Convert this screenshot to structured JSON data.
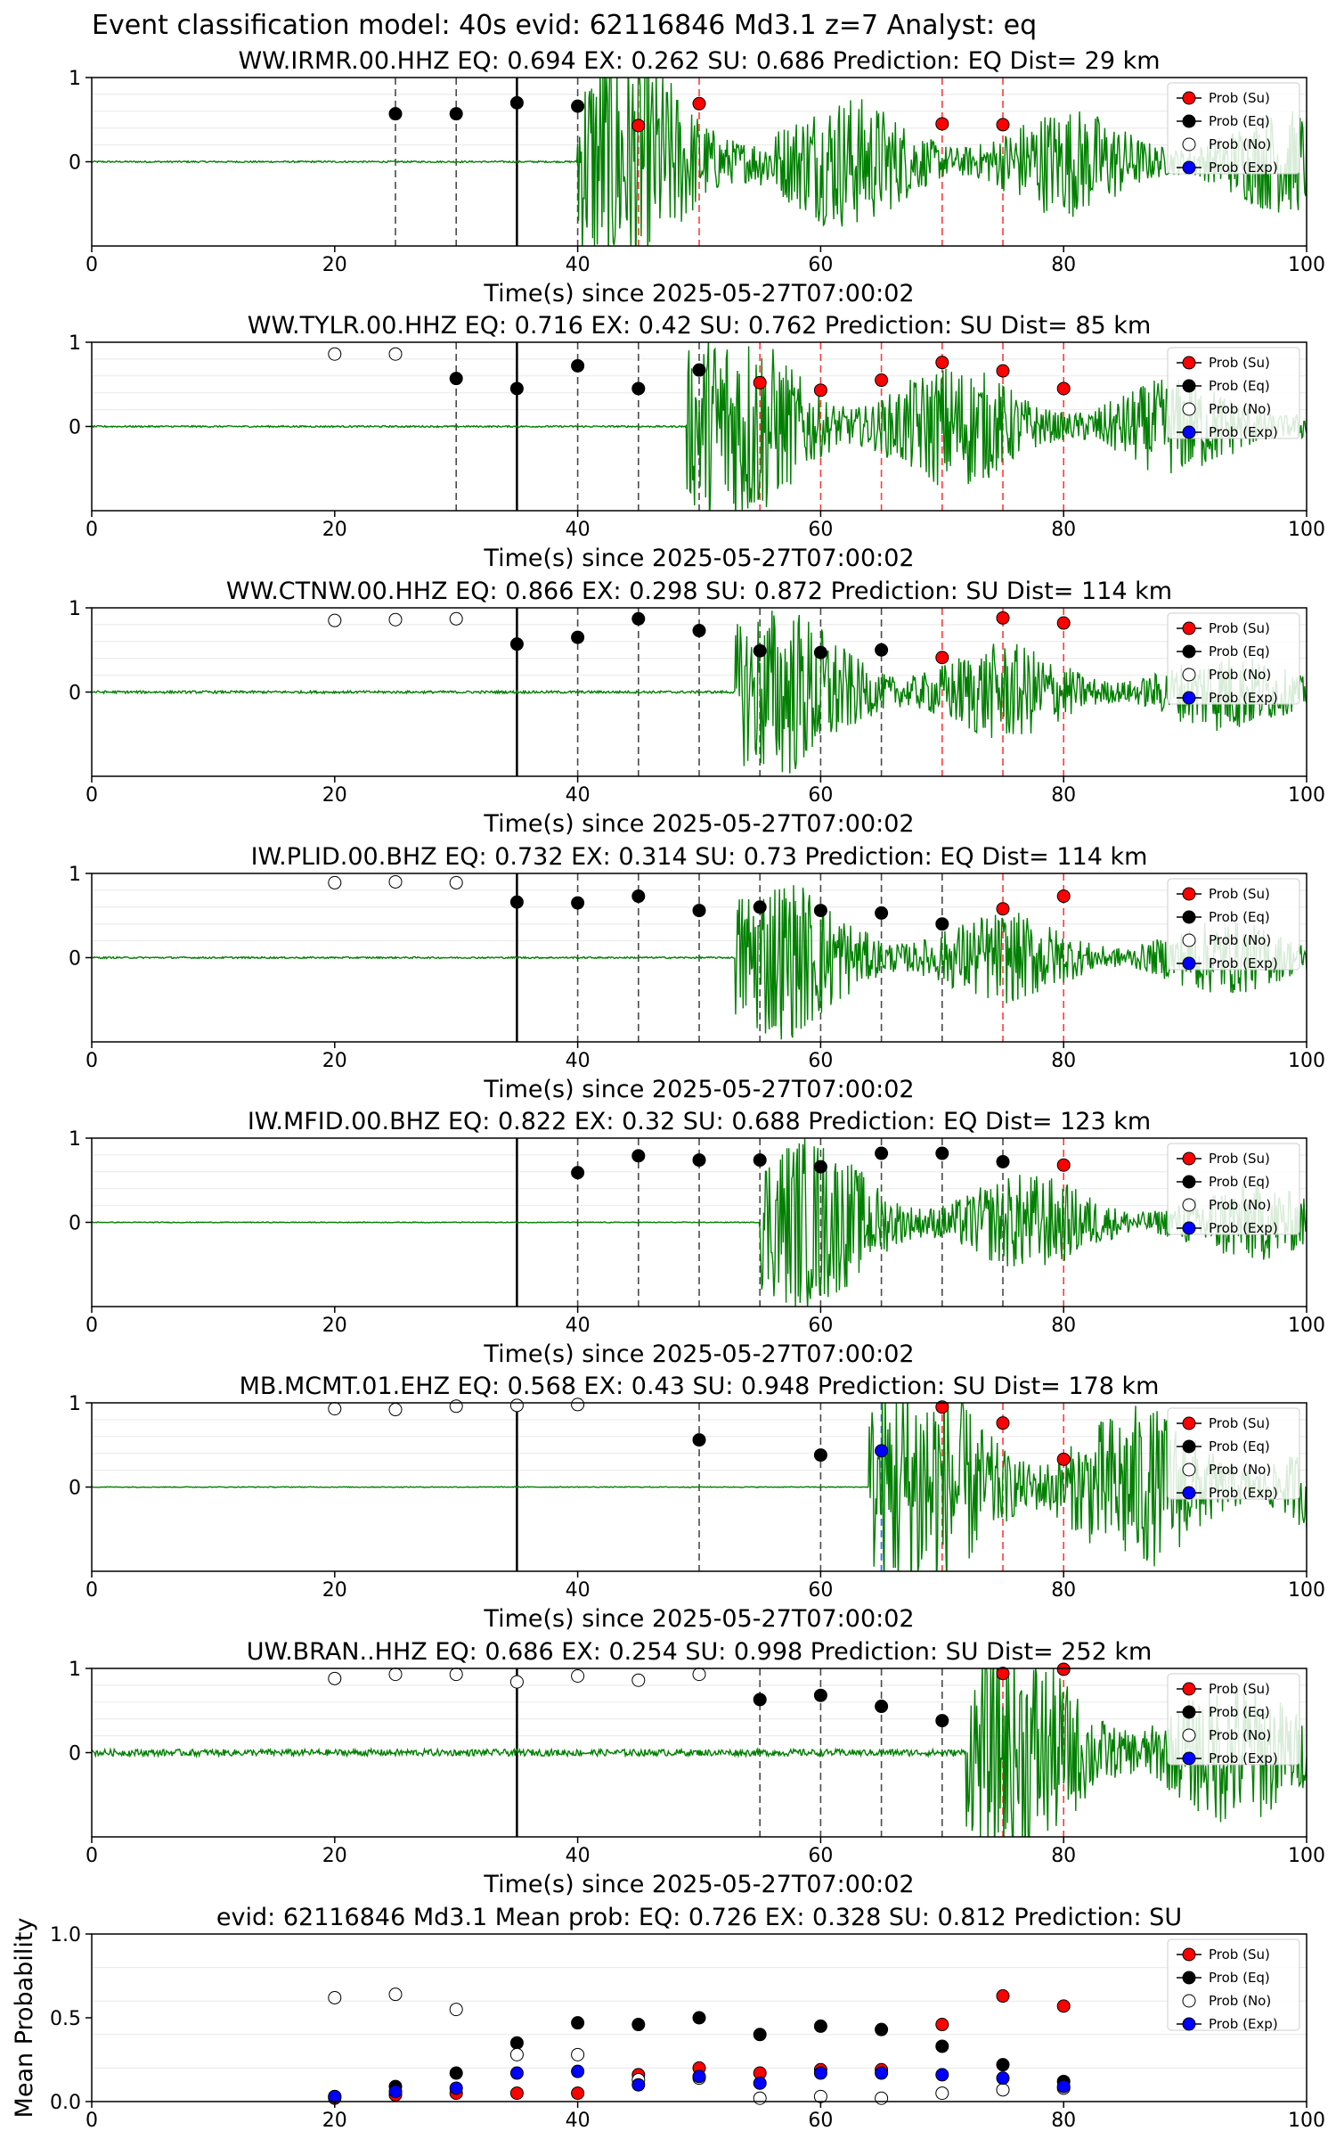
{
  "suptitle": "Event classification model: 40s evid: 62116846 Md3.1 z=7 Analyst: eq",
  "colors": {
    "su": "#ff0000",
    "eq": "#000000",
    "no": "#ffffff",
    "exp": "#0000ff",
    "waveform": "#008000",
    "waveform_faint": "#9fd49f",
    "su_line": "#ff3b3b",
    "eq_line": "#4a4a4a",
    "exp_line": "#3a6fff",
    "grid": "#e8e8e8"
  },
  "legend": [
    "Prob (Su)",
    "Prob (Eq)",
    "Prob (No)",
    "Prob (Exp)"
  ],
  "chart_data": [
    {
      "type": "scatter",
      "title": "WW.IRMR.00.HHZ   EQ: 0.694  EX: 0.262  SU: 0.686   Prediction: EQ    Dist= 29 km",
      "xlabel": "Time(s) since 2025-05-27T07:00:02",
      "ylabel": "",
      "xlim": [
        0,
        100
      ],
      "ylim": [
        -1,
        1
      ],
      "xticks": [
        "0",
        "20",
        "40",
        "60",
        "80",
        "100"
      ],
      "yticks": [
        "1",
        "0"
      ],
      "start_line": 35,
      "waveform": {
        "onset": 40,
        "peak_amp": 1.1,
        "noise": 0.01,
        "decay": 0.02
      },
      "series": [
        {
          "name": "Prob (Su)",
          "x": [
            45,
            50,
            70,
            75
          ],
          "y": [
            0.43,
            0.69,
            0.45,
            0.44
          ]
        },
        {
          "name": "Prob (Eq)",
          "x": [
            25,
            30,
            35,
            40
          ],
          "y": [
            0.57,
            0.57,
            0.7,
            0.66
          ]
        },
        {
          "name": "Prob (No)",
          "x": [],
          "y": []
        },
        {
          "name": "Prob (Exp)",
          "x": [],
          "y": []
        }
      ]
    },
    {
      "type": "scatter",
      "title": "WW.TYLR.00.HHZ   EQ: 0.716  EX: 0.42  SU: 0.762   Prediction: SU    Dist= 85 km",
      "xlabel": "Time(s) since 2025-05-27T07:00:02",
      "ylabel": "",
      "xlim": [
        0,
        100
      ],
      "ylim": [
        -1,
        1
      ],
      "xticks": [
        "0",
        "20",
        "40",
        "60",
        "80",
        "100"
      ],
      "yticks": [
        "1",
        "0"
      ],
      "start_line": 35,
      "waveform": {
        "onset": 49,
        "peak_amp": 0.9,
        "noise": 0.01,
        "decay": 0.015
      },
      "series": [
        {
          "name": "Prob (Su)",
          "x": [
            55,
            60,
            65,
            70,
            75,
            80
          ],
          "y": [
            0.52,
            0.43,
            0.55,
            0.76,
            0.66,
            0.45
          ]
        },
        {
          "name": "Prob (Eq)",
          "x": [
            30,
            35,
            40,
            45,
            50
          ],
          "y": [
            0.57,
            0.45,
            0.72,
            0.45,
            0.67
          ]
        },
        {
          "name": "Prob (No)",
          "x": [
            20,
            25
          ],
          "y": [
            0.86,
            0.86
          ]
        },
        {
          "name": "Prob (Exp)",
          "x": [],
          "y": []
        }
      ]
    },
    {
      "type": "scatter",
      "title": "WW.CTNW.00.HHZ   EQ: 0.866  EX: 0.298  SU: 0.872   Prediction: SU    Dist= 114 km",
      "xlabel": "Time(s) since 2025-05-27T07:00:02",
      "ylabel": "",
      "xlim": [
        0,
        100
      ],
      "ylim": [
        -1,
        1
      ],
      "xticks": [
        "0",
        "20",
        "40",
        "60",
        "80",
        "100"
      ],
      "yticks": [
        "1",
        "0"
      ],
      "start_line": 35,
      "waveform": {
        "onset": 53,
        "peak_amp": 0.8,
        "noise": 0.015,
        "decay": 0.02
      },
      "series": [
        {
          "name": "Prob (Su)",
          "x": [
            70,
            75,
            80
          ],
          "y": [
            0.41,
            0.88,
            0.82
          ]
        },
        {
          "name": "Prob (Eq)",
          "x": [
            35,
            40,
            45,
            50,
            55,
            60,
            65
          ],
          "y": [
            0.57,
            0.65,
            0.87,
            0.73,
            0.49,
            0.47,
            0.5
          ]
        },
        {
          "name": "Prob (No)",
          "x": [
            20,
            25,
            30
          ],
          "y": [
            0.85,
            0.86,
            0.87
          ]
        },
        {
          "name": "Prob (Exp)",
          "x": [],
          "y": []
        }
      ]
    },
    {
      "type": "scatter",
      "title": "IW.PLID.00.BHZ   EQ: 0.732  EX: 0.314  SU: 0.73   Prediction: EQ    Dist= 114 km",
      "xlabel": "Time(s) since 2025-05-27T07:00:02",
      "ylabel": "",
      "xlim": [
        0,
        100
      ],
      "ylim": [
        -1,
        1
      ],
      "xticks": [
        "0",
        "20",
        "40",
        "60",
        "80",
        "100"
      ],
      "yticks": [
        "1",
        "0"
      ],
      "start_line": 35,
      "waveform": {
        "onset": 53,
        "peak_amp": 0.75,
        "noise": 0.01,
        "decay": 0.02
      },
      "series": [
        {
          "name": "Prob (Su)",
          "x": [
            75,
            80
          ],
          "y": [
            0.58,
            0.73
          ]
        },
        {
          "name": "Prob (Eq)",
          "x": [
            35,
            40,
            45,
            50,
            55,
            60,
            65,
            70
          ],
          "y": [
            0.66,
            0.65,
            0.73,
            0.56,
            0.6,
            0.56,
            0.53,
            0.4
          ]
        },
        {
          "name": "Prob (No)",
          "x": [
            20,
            25,
            30
          ],
          "y": [
            0.89,
            0.9,
            0.89
          ]
        },
        {
          "name": "Prob (Exp)",
          "x": [],
          "y": []
        }
      ]
    },
    {
      "type": "scatter",
      "title": "IW.MFID.00.BHZ   EQ: 0.822  EX: 0.32  SU: 0.688   Prediction: EQ    Dist= 123 km",
      "xlabel": "Time(s) since 2025-05-27T07:00:02",
      "ylabel": "",
      "xlim": [
        0,
        100
      ],
      "ylim": [
        -1,
        1
      ],
      "xticks": [
        "0",
        "20",
        "40",
        "60",
        "80",
        "100"
      ],
      "yticks": [
        "1",
        "0"
      ],
      "start_line": 35,
      "waveform": {
        "onset": 55,
        "peak_amp": 0.8,
        "noise": 0.005,
        "decay": 0.02
      },
      "series": [
        {
          "name": "Prob (Su)",
          "x": [
            80
          ],
          "y": [
            0.68
          ]
        },
        {
          "name": "Prob (Eq)",
          "x": [
            40,
            45,
            50,
            55,
            60,
            65,
            70,
            75
          ],
          "y": [
            0.59,
            0.79,
            0.74,
            0.74,
            0.66,
            0.82,
            0.82,
            0.72
          ]
        },
        {
          "name": "Prob (No)",
          "x": [],
          "y": []
        },
        {
          "name": "Prob (Exp)",
          "x": [],
          "y": []
        }
      ]
    },
    {
      "type": "scatter",
      "title": "MB.MCMT.01.EHZ   EQ: 0.568  EX: 0.43  SU: 0.948   Prediction: SU    Dist= 178 km",
      "xlabel": "Time(s) since 2025-05-27T07:00:02",
      "ylabel": "",
      "xlim": [
        0,
        100
      ],
      "ylim": [
        -1,
        1
      ],
      "xticks": [
        "0",
        "20",
        "40",
        "60",
        "80",
        "100"
      ],
      "yticks": [
        "1",
        "0"
      ],
      "start_line": 35,
      "exp_line": 65,
      "waveform": {
        "onset": 64,
        "peak_amp": 1.0,
        "noise": 0.005,
        "decay": 0.01
      },
      "series": [
        {
          "name": "Prob (Su)",
          "x": [
            70,
            75,
            80
          ],
          "y": [
            0.95,
            0.76,
            0.33
          ]
        },
        {
          "name": "Prob (Eq)",
          "x": [
            50,
            60
          ],
          "y": [
            0.56,
            0.38
          ]
        },
        {
          "name": "Prob (No)",
          "x": [
            20,
            25,
            30,
            35,
            40
          ],
          "y": [
            0.93,
            0.92,
            0.96,
            0.97,
            0.98
          ]
        },
        {
          "name": "Prob (Exp)",
          "x": [
            65
          ],
          "y": [
            0.43
          ]
        }
      ]
    },
    {
      "type": "scatter",
      "title": "UW.BRAN..HHZ   EQ: 0.686  EX: 0.254  SU: 0.998   Prediction: SU    Dist= 252 km",
      "xlabel": "Time(s) since 2025-05-27T07:00:02",
      "ylabel": "",
      "xlim": [
        0,
        100
      ],
      "ylim": [
        -1,
        1
      ],
      "xticks": [
        "0",
        "20",
        "40",
        "60",
        "80",
        "100"
      ],
      "yticks": [
        "1",
        "0"
      ],
      "start_line": 35,
      "waveform": {
        "onset": 72,
        "peak_amp": 0.9,
        "noise": 0.04,
        "decay": 0.01
      },
      "series": [
        {
          "name": "Prob (Su)",
          "x": [
            75,
            80
          ],
          "y": [
            0.94,
            0.99
          ]
        },
        {
          "name": "Prob (Eq)",
          "x": [
            55,
            60,
            65,
            70
          ],
          "y": [
            0.63,
            0.68,
            0.55,
            0.38
          ]
        },
        {
          "name": "Prob (No)",
          "x": [
            20,
            25,
            30,
            35,
            40,
            45,
            50
          ],
          "y": [
            0.88,
            0.93,
            0.93,
            0.84,
            0.91,
            0.86,
            0.93
          ]
        },
        {
          "name": "Prob (Exp)",
          "x": [],
          "y": []
        }
      ]
    },
    {
      "type": "scatter",
      "title": "evid: 62116846  Md3.1   Mean prob:   EQ: 0.726  EX: 0.328  SU: 0.812   Prediction: SU",
      "xlabel": "",
      "ylabel": "Mean Probability",
      "xlim": [
        0,
        100
      ],
      "ylim": [
        0,
        1
      ],
      "xticks": [
        "0",
        "20",
        "40",
        "60",
        "80",
        "100"
      ],
      "yticks": [
        "1.0",
        "0.5",
        "0.0"
      ],
      "series": [
        {
          "name": "Prob (Su)",
          "x": [
            20,
            25,
            30,
            35,
            40,
            45,
            50,
            55,
            60,
            65,
            70,
            75,
            80
          ],
          "y": [
            0.02,
            0.04,
            0.05,
            0.05,
            0.05,
            0.16,
            0.2,
            0.17,
            0.19,
            0.19,
            0.46,
            0.63,
            0.57
          ]
        },
        {
          "name": "Prob (Eq)",
          "x": [
            20,
            25,
            30,
            35,
            40,
            45,
            50,
            55,
            60,
            65,
            70,
            75,
            80
          ],
          "y": [
            0.03,
            0.09,
            0.17,
            0.35,
            0.47,
            0.46,
            0.5,
            0.4,
            0.45,
            0.43,
            0.33,
            0.22,
            0.12
          ]
        },
        {
          "name": "Prob (No)",
          "x": [
            20,
            25,
            30,
            35,
            40,
            45,
            50,
            55,
            60,
            65,
            70,
            75,
            80
          ],
          "y": [
            0.62,
            0.64,
            0.55,
            0.28,
            0.28,
            0.13,
            0.14,
            0.02,
            0.03,
            0.02,
            0.05,
            0.07,
            0.08
          ]
        },
        {
          "name": "Prob (Exp)",
          "x": [
            20,
            25,
            30,
            35,
            40,
            45,
            50,
            55,
            60,
            65,
            70,
            75,
            80
          ],
          "y": [
            0.03,
            0.06,
            0.08,
            0.17,
            0.18,
            0.1,
            0.15,
            0.11,
            0.17,
            0.17,
            0.16,
            0.14,
            0.09
          ]
        }
      ]
    }
  ]
}
